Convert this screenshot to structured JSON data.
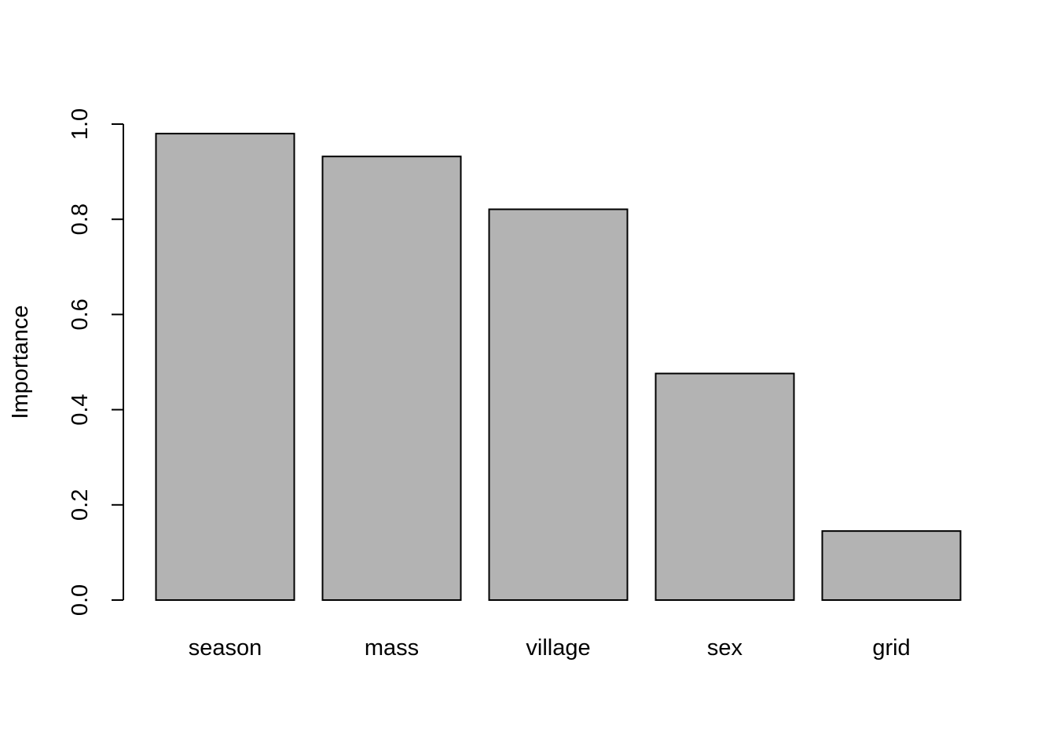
{
  "chart_data": {
    "type": "bar",
    "title": "",
    "xlabel": "",
    "ylabel": "Importance",
    "categories": [
      "season",
      "mass",
      "village",
      "sex",
      "grid"
    ],
    "values": [
      0.98,
      0.932,
      0.821,
      0.476,
      0.145
    ],
    "ylim": [
      0,
      1
    ],
    "yticks": [
      "0.0",
      "0.2",
      "0.4",
      "0.6",
      "0.8",
      "1.0"
    ],
    "grid": false,
    "legend": "none",
    "colors": {
      "bar_fill": "#b3b3b3",
      "bar_stroke": "#000000",
      "axis": "#000000",
      "background": "#ffffff"
    }
  }
}
